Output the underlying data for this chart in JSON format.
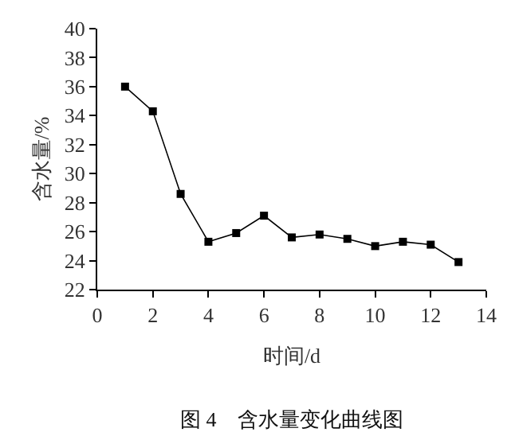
{
  "chart_data": {
    "type": "line",
    "xlabel": "时间/d",
    "ylabel": "含水量/%",
    "annotations": [
      "图 4　含水量变化曲线图"
    ],
    "x": [
      1,
      2,
      3,
      4,
      5,
      6,
      7,
      8,
      9,
      10,
      11,
      12,
      13
    ],
    "series": [
      {
        "color": "#000000",
        "values": [
          36.0,
          34.3,
          28.6,
          25.3,
          25.9,
          27.1,
          25.6,
          25.8,
          25.5,
          25.0,
          25.3,
          25.1,
          23.9
        ]
      }
    ],
    "xlim": [
      0,
      14
    ],
    "xticks": [
      0,
      2,
      4,
      6,
      8,
      10,
      12,
      14
    ],
    "ylim": [
      22,
      40
    ],
    "yticks": [
      22,
      24,
      26,
      28,
      30,
      32,
      34,
      36,
      38,
      40
    ],
    "marker": "square",
    "line_style": "solid"
  }
}
